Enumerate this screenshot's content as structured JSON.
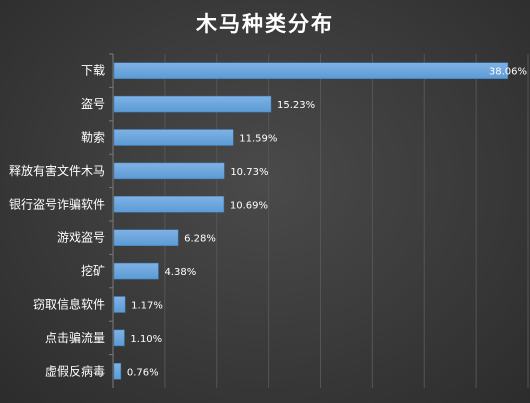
{
  "chart_data": {
    "type": "bar",
    "orientation": "horizontal",
    "title": "木马种类分布",
    "categories": [
      "下载",
      "盗号",
      "勒索",
      "释放有害文件木马",
      "银行盗号诈骗软件",
      "游戏盗号",
      "挖矿",
      "窃取信息软件",
      "点击骗流量",
      "虚假反病毒"
    ],
    "values": [
      38.06,
      15.23,
      11.59,
      10.73,
      10.69,
      6.28,
      4.38,
      1.17,
      1.1,
      0.76
    ],
    "value_labels": [
      "38.06%",
      "15.23%",
      "11.59%",
      "10.73%",
      "10.69%",
      "6.28%",
      "4.38%",
      "1.17%",
      "1.10%",
      "0.76%"
    ],
    "xlim": [
      0,
      40
    ],
    "grid": true,
    "legend": "none",
    "bar_color": "#5b9bd5",
    "background": "#3c3c3c"
  }
}
